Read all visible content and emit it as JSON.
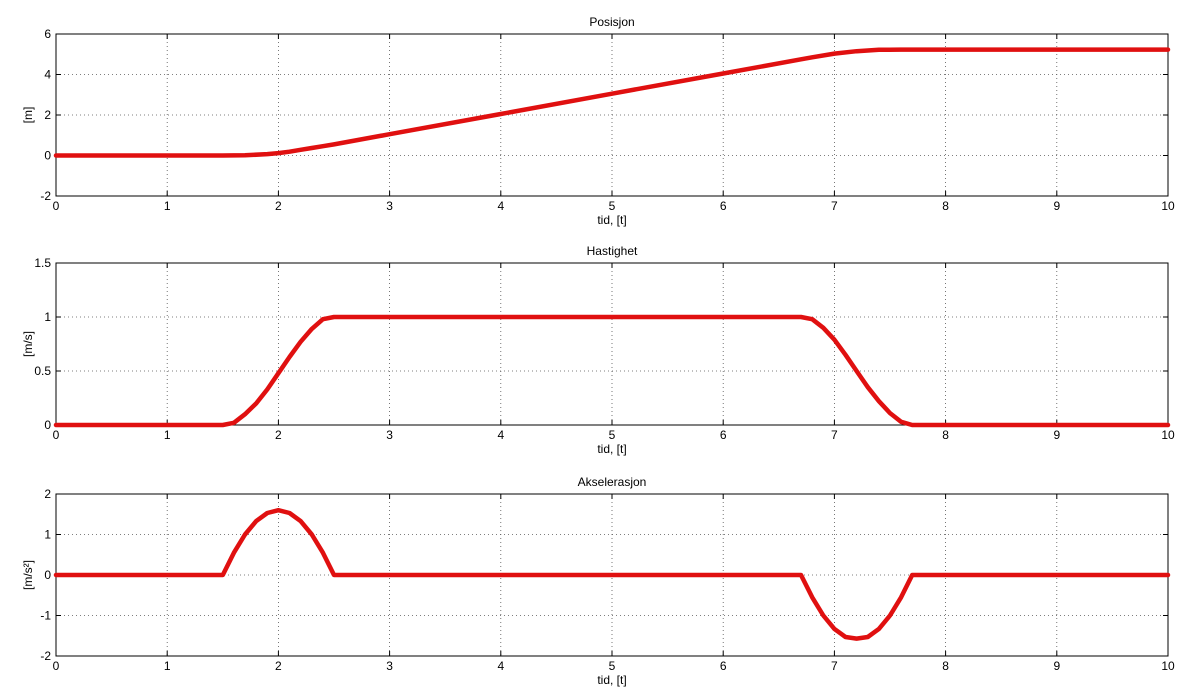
{
  "chart_data": [
    {
      "type": "line",
      "title": "Posisjon",
      "xlabel": "tid, [t]",
      "ylabel": "[m]",
      "xlim": [
        0,
        10
      ],
      "ylim": [
        -2,
        6
      ],
      "xticks": [
        "0",
        "1",
        "2",
        "3",
        "4",
        "5",
        "6",
        "7",
        "8",
        "9",
        "10"
      ],
      "yticks": [
        "-2",
        "0",
        "2",
        "4",
        "6"
      ],
      "grid": true,
      "series": [
        {
          "color": "#e01010",
          "x": [
            0,
            1.5,
            1.7,
            1.9,
            2.0,
            2.1,
            2.2,
            2.3,
            2.4,
            2.5,
            3,
            4,
            5,
            6,
            6.7,
            6.8,
            7.0,
            7.2,
            7.4,
            7.6,
            10
          ],
          "y": [
            0,
            0,
            0.01,
            0.07,
            0.12,
            0.19,
            0.28,
            0.37,
            0.46,
            0.55,
            1.05,
            2.05,
            3.05,
            4.05,
            4.75,
            4.85,
            5.03,
            5.15,
            5.22,
            5.23,
            5.23
          ]
        }
      ]
    },
    {
      "type": "line",
      "title": "Hastighet",
      "xlabel": "tid, [t]",
      "ylabel": "[m/s]",
      "xlim": [
        0,
        10
      ],
      "ylim": [
        0,
        1.5
      ],
      "xticks": [
        "0",
        "1",
        "2",
        "3",
        "4",
        "5",
        "6",
        "7",
        "8",
        "9",
        "10"
      ],
      "yticks": [
        "0",
        "0.5",
        "1",
        "1.5"
      ],
      "grid": true,
      "series": [
        {
          "color": "#e01010",
          "x": [
            0,
            1.5,
            1.6,
            1.7,
            1.8,
            1.9,
            2.0,
            2.1,
            2.2,
            2.3,
            2.4,
            2.5,
            6.7,
            6.8,
            6.9,
            7.0,
            7.1,
            7.2,
            7.3,
            7.4,
            7.5,
            7.6,
            7.7,
            10
          ],
          "y": [
            0,
            0,
            0.02,
            0.1,
            0.2,
            0.33,
            0.48,
            0.63,
            0.77,
            0.89,
            0.98,
            1.0,
            1.0,
            0.98,
            0.9,
            0.79,
            0.65,
            0.5,
            0.35,
            0.22,
            0.11,
            0.03,
            0,
            0
          ]
        }
      ]
    },
    {
      "type": "line",
      "title": "Akselerasjon",
      "xlabel": "tid, [t]",
      "ylabel": "[m/s²]",
      "xlim": [
        0,
        10
      ],
      "ylim": [
        -2,
        2
      ],
      "xticks": [
        "0",
        "1",
        "2",
        "3",
        "4",
        "5",
        "6",
        "7",
        "8",
        "9",
        "10"
      ],
      "yticks": [
        "-2",
        "-1",
        "0",
        "1",
        "2"
      ],
      "grid": true,
      "series": [
        {
          "color": "#e01010",
          "x": [
            0,
            1.5,
            1.6,
            1.7,
            1.8,
            1.9,
            2.0,
            2.1,
            2.2,
            2.3,
            2.4,
            2.5,
            6.7,
            6.8,
            6.9,
            7.0,
            7.1,
            7.2,
            7.3,
            7.4,
            7.5,
            7.6,
            7.7,
            10
          ],
          "y": [
            0,
            0,
            0.55,
            1.0,
            1.33,
            1.53,
            1.6,
            1.53,
            1.33,
            1.0,
            0.55,
            0,
            0,
            -0.55,
            -1.0,
            -1.33,
            -1.53,
            -1.57,
            -1.53,
            -1.33,
            -1.0,
            -0.55,
            0,
            0
          ]
        }
      ]
    }
  ]
}
